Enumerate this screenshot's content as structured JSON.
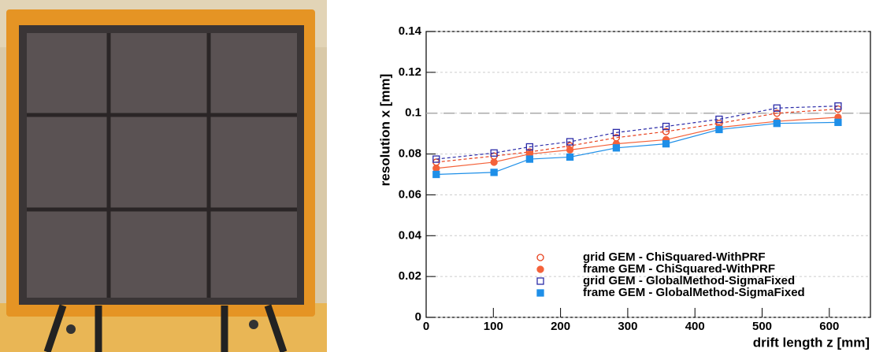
{
  "chart_data": {
    "type": "line",
    "x_label": "drift length z [mm]",
    "y_label": "resolution x [mm]",
    "x": [
      15,
      101,
      154,
      214,
      283,
      357,
      436,
      522,
      613
    ],
    "xlim": [
      0,
      660
    ],
    "ylim": [
      0,
      0.14
    ],
    "xticks": [
      0,
      100,
      200,
      300,
      400,
      500,
      600
    ],
    "yticks": [
      0,
      0.02,
      0.04,
      0.06,
      0.08,
      0.1,
      0.12,
      0.14
    ],
    "grid": true,
    "reference_line": 0.1,
    "legend_position": "bottom-right",
    "series": [
      {
        "name": "grid GEM - ChiSquared-WithPRF",
        "color": "#e8401c",
        "marker": "open-circle",
        "line_style": "dashed",
        "values": [
          0.076,
          0.079,
          0.081,
          0.084,
          0.088,
          0.091,
          0.095,
          0.1,
          0.102
        ]
      },
      {
        "name": "frame GEM - ChiSquared-WithPRF",
        "color": "#f4623a",
        "marker": "filled-circle",
        "line_style": "solid",
        "values": [
          0.073,
          0.076,
          0.08,
          0.082,
          0.085,
          0.087,
          0.093,
          0.096,
          0.098
        ]
      },
      {
        "name": "grid GEM - GlobalMethod-SigmaFixed",
        "color": "#2b2ba8",
        "marker": "open-square",
        "line_style": "dashed",
        "values": [
          0.0775,
          0.0805,
          0.0835,
          0.086,
          0.0905,
          0.0935,
          0.097,
          0.1025,
          0.1035
        ]
      },
      {
        "name": "frame GEM - GlobalMethod-SigmaFixed",
        "color": "#1e8fe8",
        "marker": "filled-square",
        "line_style": "solid",
        "values": [
          0.07,
          0.071,
          0.0775,
          0.0785,
          0.083,
          0.085,
          0.092,
          0.095,
          0.0955
        ]
      }
    ]
  }
}
